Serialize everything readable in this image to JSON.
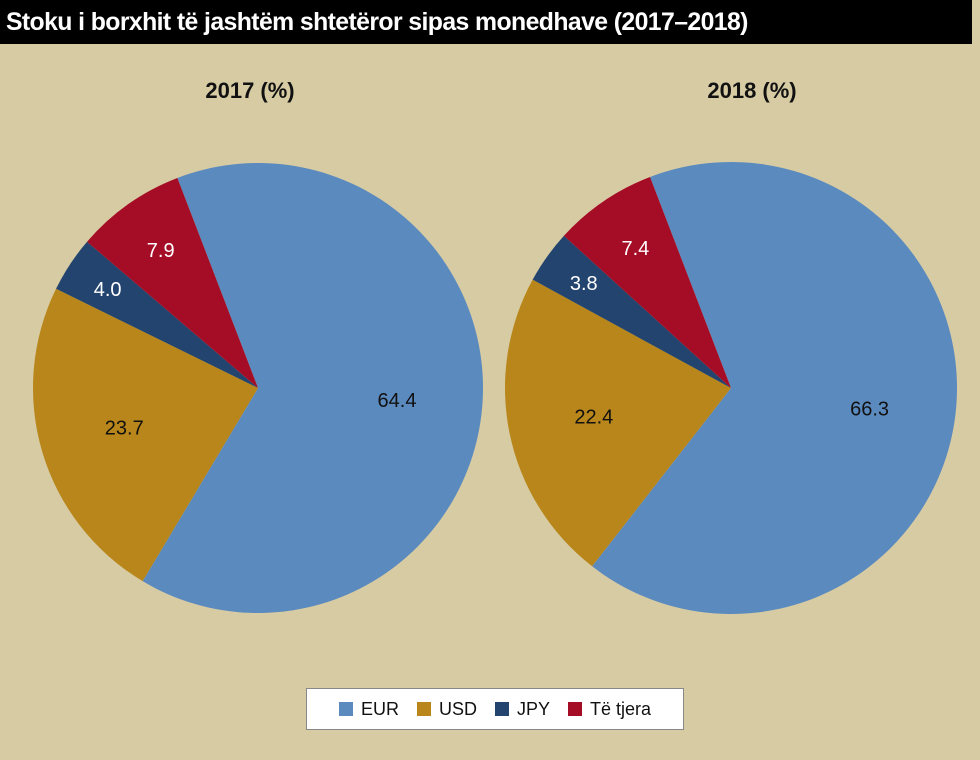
{
  "title": "Stoku i borxhit të jashtëm shtetëror sipas monedhave (2017–2018)",
  "legend": [
    {
      "label": "EUR",
      "color": "#5b8abf"
    },
    {
      "label": "USD",
      "color": "#b8861a"
    },
    {
      "label": "JPY",
      "color": "#23446e"
    },
    {
      "label": "Të tjera",
      "color": "#a50c25"
    }
  ],
  "chart_data": [
    {
      "type": "pie",
      "title": "2017 (%)",
      "categories": [
        "EUR",
        "USD",
        "JPY",
        "Të tjera"
      ],
      "values": [
        64.4,
        23.7,
        4.0,
        7.9
      ],
      "labels": [
        "64.4",
        "23.7",
        "4.0",
        "7.9"
      ]
    },
    {
      "type": "pie",
      "title": "2018 (%)",
      "categories": [
        "EUR",
        "USD",
        "JPY",
        "Të tjera"
      ],
      "values": [
        66.3,
        22.4,
        3.8,
        7.4
      ],
      "labels": [
        "66.3",
        "22.4",
        "3.8",
        "7.4"
      ]
    }
  ]
}
